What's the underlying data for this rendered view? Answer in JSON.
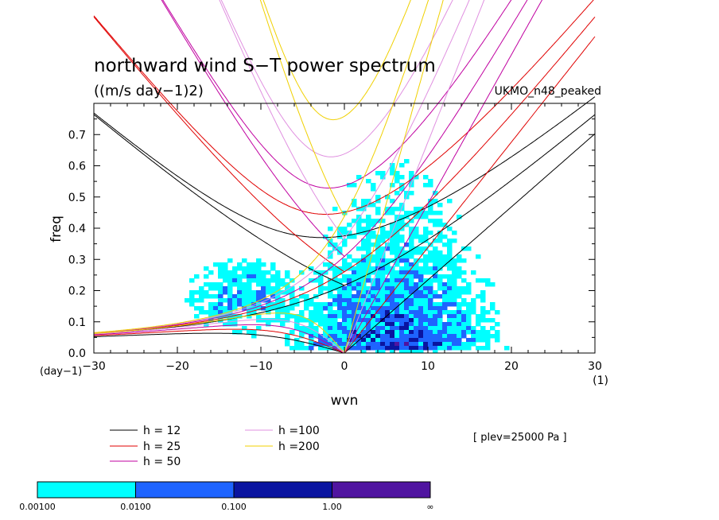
{
  "chart_data": {
    "type": "line",
    "title": "northward wind S−T power spectrum",
    "units": "((m/s day−1)2)",
    "dataset": "UKMO_n48_peaked",
    "annotation": "[ plev=25000 Pa ]",
    "xlabel": "wvn",
    "ylabel": "freq",
    "x_unit": "(1)",
    "y_unit": "(day−1)",
    "xlim": [
      -30,
      30
    ],
    "ylim": [
      0,
      0.8
    ],
    "x_ticks": [
      "−30",
      "−20",
      "−10",
      "0",
      "10",
      "20",
      "30"
    ],
    "x_tick_values": [
      -30,
      -20,
      -10,
      0,
      10,
      20,
      30
    ],
    "y_ticks": [
      "0.0",
      "0.1",
      "0.2",
      "0.3",
      "0.4",
      "0.5",
      "0.6",
      "0.7"
    ],
    "y_tick_values": [
      0,
      0.1,
      0.2,
      0.3,
      0.4,
      0.5,
      0.6,
      0.7
    ],
    "series": [
      {
        "name": "h = 12",
        "h": 12,
        "color": "#000000"
      },
      {
        "name": "h = 25",
        "h": 25,
        "color": "#e00000"
      },
      {
        "name": "h = 50",
        "h": 50,
        "color": "#c000a0"
      },
      {
        "name": "h =100",
        "h": 100,
        "color": "#e090e0"
      },
      {
        "name": "h =200",
        "h": 200,
        "color": "#f0d000"
      }
    ],
    "colorbar": {
      "labels": [
        "0.00100",
        "0.0100",
        "0.100",
        "1.00",
        "∞"
      ],
      "colors": [
        "#00ffff",
        "#1e64ff",
        "#0a14a0",
        "#5014a0"
      ]
    }
  }
}
